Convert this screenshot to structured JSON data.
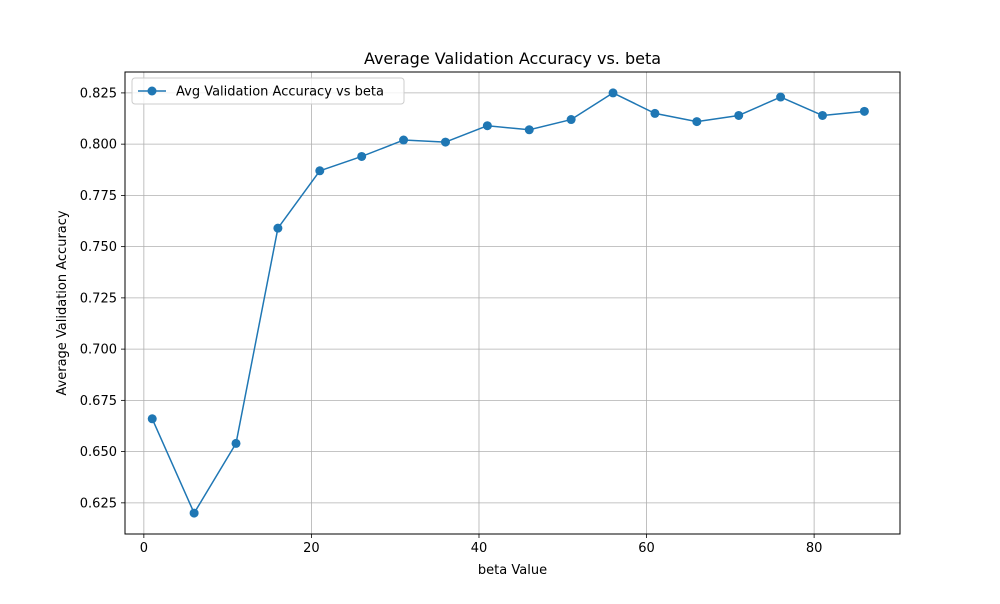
{
  "chart_data": {
    "type": "line",
    "title": "Average Validation Accuracy vs. beta",
    "xlabel": "beta Value",
    "ylabel": "Average Validation Accuracy",
    "xlim": [
      -2.25,
      90.25
    ],
    "ylim": [
      0.6098,
      0.8352
    ],
    "xticks": [
      0,
      20,
      40,
      60,
      80
    ],
    "xtick_labels": [
      "0",
      "20",
      "40",
      "60",
      "80"
    ],
    "yticks": [
      0.625,
      0.65,
      0.675,
      0.7,
      0.725,
      0.75,
      0.775,
      0.8,
      0.825
    ],
    "ytick_labels": [
      "0.625",
      "0.650",
      "0.675",
      "0.700",
      "0.725",
      "0.750",
      "0.775",
      "0.800",
      "0.825"
    ],
    "grid": true,
    "legend_position": "top-left",
    "series": [
      {
        "name": "Avg Validation Accuracy vs beta",
        "color": "#1f77b4",
        "marker": "circle",
        "x": [
          1,
          6,
          11,
          16,
          21,
          26,
          31,
          36,
          41,
          46,
          51,
          56,
          61,
          66,
          71,
          76,
          81,
          86
        ],
        "y": [
          0.666,
          0.62,
          0.654,
          0.759,
          0.787,
          0.794,
          0.802,
          0.801,
          0.809,
          0.807,
          0.812,
          0.825,
          0.815,
          0.811,
          0.814,
          0.823,
          0.814,
          0.816
        ]
      }
    ]
  }
}
